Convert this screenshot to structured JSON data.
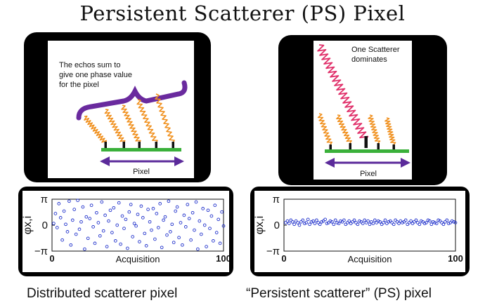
{
  "title": "Persistent Scatterer (PS) Pixel",
  "left_diagram": {
    "annotation_lines": [
      "The echos sum to",
      "give one phase value",
      "for the pixel"
    ],
    "pixel_label": "Pixel"
  },
  "right_diagram": {
    "annotation_lines": [
      "One Scatterer",
      "dominates"
    ],
    "pixel_label": "Pixel"
  },
  "chart_data": [
    {
      "type": "scatter",
      "title": "",
      "xlabel": "Acquisition",
      "ylabel": "φx,i",
      "xlim": [
        0,
        100
      ],
      "ylim": [
        -3.1416,
        3.1416
      ],
      "x_tick_labels": [
        "0",
        "100"
      ],
      "y_tick_labels": [
        "π",
        "0",
        "−π"
      ],
      "points_description": "phase values spread uniformly over [-π, π]",
      "series": [
        {
          "x": [
            1,
            2,
            3,
            4,
            5,
            6,
            7,
            8,
            9,
            10,
            11,
            12,
            13,
            14,
            15,
            16,
            17,
            18,
            19,
            20,
            21,
            22,
            23,
            24,
            25,
            26,
            27,
            28,
            29,
            30,
            31,
            32,
            33,
            34,
            35,
            36,
            37,
            38,
            39,
            40,
            41,
            42,
            43,
            44,
            45,
            46,
            47,
            48,
            49,
            50,
            51,
            52,
            53,
            54,
            55,
            56,
            57,
            58,
            59,
            60,
            61,
            62,
            63,
            64,
            65,
            66,
            67,
            68,
            69,
            70,
            71,
            72,
            73,
            74,
            75,
            76,
            77,
            78,
            79,
            80,
            81,
            82,
            83,
            84,
            85,
            86,
            87,
            88,
            89,
            90,
            91,
            92,
            93,
            94,
            95,
            96,
            97,
            98,
            99,
            100
          ],
          "y": [
            0.2,
            1.4,
            -0.3,
            2.6,
            0.9,
            -1.8,
            1.7,
            0.1,
            -0.8,
            2.9,
            -2.4,
            0.6,
            1.9,
            -1.1,
            3.0,
            -0.5,
            0.4,
            2.2,
            -2.9,
            1.0,
            -1.6,
            0.8,
            2.4,
            -0.2,
            -2.2,
            1.5,
            0.3,
            -1.3,
            2.8,
            -0.7,
            1.2,
            -2.6,
            0.5,
            1.8,
            -0.9,
            2.1,
            -1.9,
            0.0,
            2.7,
            -2.3,
            1.1,
            -0.4,
            0.7,
            -2.8,
            1.6,
            2.5,
            -1.4,
            0.2,
            -0.1,
            1.3,
            -2.0,
            2.3,
            0.9,
            -1.0,
            -2.5,
            1.9,
            0.4,
            -0.6,
            2.0,
            -1.7,
            1.4,
            -0.3,
            2.6,
            -2.7,
            0.6,
            1.0,
            -1.2,
            2.9,
            -0.8,
            0.1,
            -2.1,
            1.7,
            2.2,
            -1.5,
            0.3,
            -2.4,
            1.2,
            -0.2,
            2.5,
            0.8,
            -1.8,
            1.5,
            -0.6,
            2.8,
            -2.9,
            0.5,
            -1.1,
            2.0,
            0.0,
            -2.6,
            1.8,
            -0.4,
            1.1,
            -1.9,
            2.4,
            -0.9,
            0.7,
            -2.2,
            1.6,
            -0.1
          ]
        }
      ]
    },
    {
      "type": "scatter",
      "title": "",
      "xlabel": "Acquisition",
      "ylabel": "φx,i",
      "xlim": [
        0,
        100
      ],
      "ylim": [
        -3.1416,
        3.1416
      ],
      "x_tick_labels": [
        "0",
        "100"
      ],
      "y_tick_labels": [
        "π",
        "0",
        "−π"
      ],
      "series": [
        {
          "x": [
            1,
            2,
            3,
            4,
            5,
            6,
            7,
            8,
            9,
            10,
            11,
            12,
            13,
            14,
            15,
            16,
            17,
            18,
            19,
            20,
            21,
            22,
            23,
            24,
            25,
            26,
            27,
            28,
            29,
            30,
            31,
            32,
            33,
            34,
            35,
            36,
            37,
            38,
            39,
            40,
            41,
            42,
            43,
            44,
            45,
            46,
            47,
            48,
            49,
            50,
            51,
            52,
            53,
            54,
            55,
            56,
            57,
            58,
            59,
            60,
            61,
            62,
            63,
            64,
            65,
            66,
            67,
            68,
            69,
            70,
            71,
            72,
            73,
            74,
            75,
            76,
            77,
            78,
            79,
            80,
            81,
            82,
            83,
            84,
            85,
            86,
            87,
            88,
            89,
            90,
            91,
            92,
            93,
            94,
            95,
            96,
            97,
            98,
            99,
            100
          ],
          "y": [
            0.3,
            0.5,
            0.2,
            0.6,
            0.4,
            0.1,
            0.5,
            0.3,
            0.0,
            0.4,
            0.6,
            0.2,
            0.3,
            0.7,
            0.1,
            0.4,
            0.5,
            0.2,
            0.6,
            0.3,
            0.1,
            0.4,
            0.5,
            0.7,
            0.2,
            0.3,
            0.5,
            0.4,
            0.1,
            0.6,
            0.3,
            0.2,
            0.5,
            0.4,
            0.6,
            0.1,
            0.3,
            0.5,
            0.2,
            0.4,
            0.6,
            0.3,
            0.1,
            0.5,
            0.4,
            0.2,
            0.6,
            0.3,
            0.5,
            0.1,
            0.4,
            0.2,
            0.6,
            0.3,
            0.5,
            0.4,
            0.1,
            0.3,
            0.6,
            0.2,
            0.4,
            0.5,
            0.3,
            0.1,
            0.6,
            0.4,
            0.2,
            0.5,
            0.3,
            0.4,
            0.6,
            0.1,
            0.3,
            0.5,
            0.2,
            0.4,
            0.6,
            0.3,
            0.1,
            0.5,
            0.4,
            0.2,
            0.3,
            0.6,
            0.5,
            0.1,
            0.4,
            0.3,
            0.2,
            0.6,
            0.5,
            0.3,
            0.1,
            0.4,
            0.6,
            0.2,
            0.3,
            0.5,
            0.4,
            0.3
          ]
        }
      ]
    }
  ],
  "captions": {
    "left": "Distributed scatterer pixel",
    "right": "“Persistent scatterer” (PS) pixel"
  },
  "colors": {
    "wave": "#f0901e",
    "dominant_wave": "#e0306a",
    "ground": "#3ab03a",
    "arrow": "#5b2a9a",
    "brace": "#6a2a9e",
    "points": "#2233cc"
  }
}
